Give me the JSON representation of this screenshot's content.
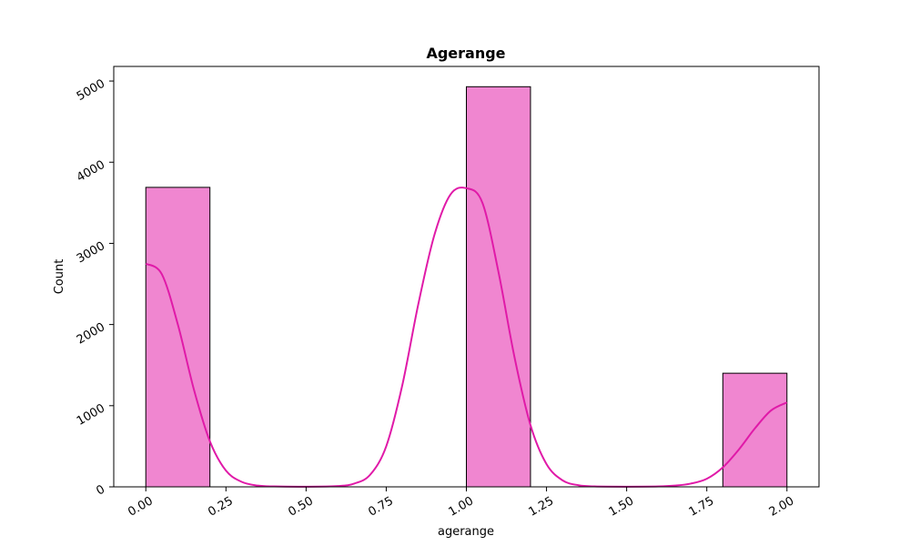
{
  "chart_data": {
    "type": "bar",
    "title": "Agerange",
    "xlabel": "agerange",
    "ylabel": "Count",
    "xlim": [
      -0.1,
      2.1
    ],
    "ylim": [
      0,
      5180
    ],
    "grid": false,
    "bin_width": 0.2,
    "bars": [
      {
        "x0": 0.0,
        "x1": 0.2,
        "value": 3690
      },
      {
        "x0": 1.0,
        "x1": 1.2,
        "value": 4930
      },
      {
        "x0": 1.8,
        "x1": 2.0,
        "value": 1400
      }
    ],
    "kde_curve": {
      "x": [
        0.0,
        0.05,
        0.1,
        0.15,
        0.2,
        0.25,
        0.3,
        0.35,
        0.4,
        0.5,
        0.6,
        0.65,
        0.7,
        0.75,
        0.8,
        0.85,
        0.9,
        0.95,
        1.0,
        1.05,
        1.1,
        1.15,
        1.2,
        1.25,
        1.3,
        1.35,
        1.4,
        1.5,
        1.6,
        1.65,
        1.7,
        1.75,
        1.8,
        1.85,
        1.9,
        1.95,
        2.0
      ],
      "y": [
        2750,
        2620,
        2000,
        1200,
        560,
        200,
        60,
        15,
        5,
        2,
        10,
        40,
        150,
        500,
        1250,
        2250,
        3100,
        3600,
        3680,
        3500,
        2650,
        1600,
        760,
        280,
        80,
        20,
        5,
        2,
        5,
        15,
        40,
        100,
        240,
        460,
        720,
        940,
        1040
      ]
    },
    "x_ticks": [
      "0.00",
      "0.25",
      "0.50",
      "0.75",
      "1.00",
      "1.25",
      "1.50",
      "1.75",
      "2.00"
    ],
    "x_tick_values": [
      0.0,
      0.25,
      0.5,
      0.75,
      1.0,
      1.25,
      1.5,
      1.75,
      2.0
    ],
    "y_ticks": [
      "0",
      "1000",
      "2000",
      "3000",
      "4000",
      "5000"
    ],
    "y_tick_values": [
      0,
      1000,
      2000,
      3000,
      4000,
      5000
    ],
    "bar_color": "#f086d0",
    "bar_edge_color": "#000000",
    "line_color": "#e01aa8"
  }
}
